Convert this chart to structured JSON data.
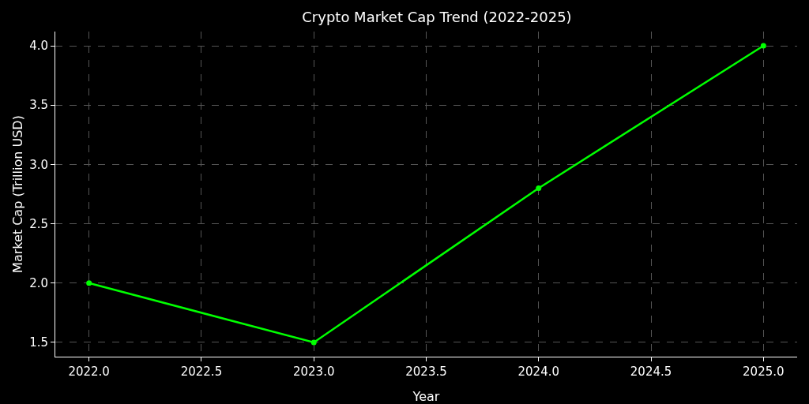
{
  "chart_data": {
    "type": "line",
    "title": "Crypto Market Cap Trend (2022-2025)",
    "xlabel": "Year",
    "ylabel": "Market Cap (Trillion USD)",
    "x": [
      2022,
      2023,
      2024,
      2025
    ],
    "series": [
      {
        "color": "#00ff00",
        "values": [
          2.0,
          1.5,
          2.8,
          4.0
        ]
      }
    ],
    "xlim": [
      2021.85,
      2025.15
    ],
    "xticks": [
      {
        "value": 2022,
        "label": "2022.0"
      },
      {
        "value": 2022.5,
        "label": "2022.5"
      },
      {
        "value": 2023,
        "label": "2023.0"
      },
      {
        "value": 2023.5,
        "label": "2023.5"
      },
      {
        "value": 2024,
        "label": "2024.0"
      },
      {
        "value": 2024.5,
        "label": "2024.5"
      },
      {
        "value": 2025,
        "label": "2025.0"
      }
    ],
    "ylim": [
      1.38,
      4.12
    ],
    "yticks": [
      1.5,
      {
        "value": 2,
        "label": "2.0"
      },
      2.5,
      {
        "value": 3,
        "label": "3.0"
      },
      3.5,
      {
        "value": 4,
        "label": "4.0"
      }
    ],
    "grid": true,
    "marker": "circle",
    "line_style": "solid"
  }
}
